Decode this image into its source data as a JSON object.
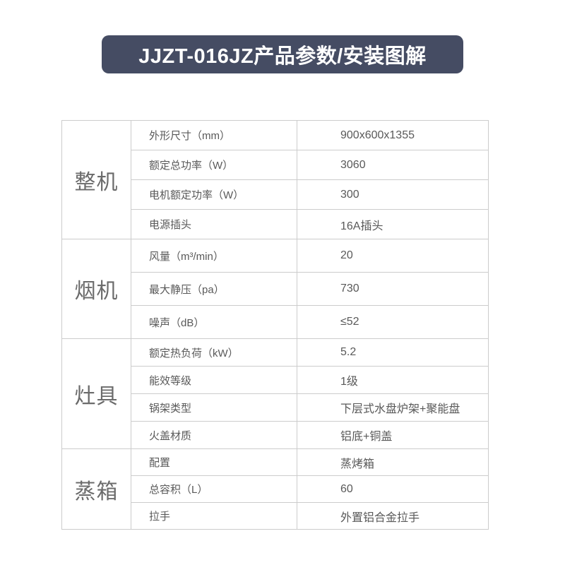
{
  "banner": {
    "title": "JJZT-016JZ产品参数/安装图解",
    "background_color": "#454c63",
    "text_color": "#ffffff"
  },
  "table": {
    "border_color": "#cccccc",
    "groups": [
      {
        "name": "整机",
        "rows": [
          {
            "label": "外形尺寸（mm）",
            "value": "900x600x1355"
          },
          {
            "label": "额定总功率（W）",
            "value": "3060"
          },
          {
            "label": "电机额定功率（W）",
            "value": "300"
          },
          {
            "label": "电源插头",
            "value": "16A插头"
          }
        ]
      },
      {
        "name": "烟机",
        "rows": [
          {
            "label": "风量（m³/min）",
            "value": "20"
          },
          {
            "label": "最大静压（pa）",
            "value": "730"
          },
          {
            "label": "噪声（dB）",
            "value": "≤52"
          }
        ]
      },
      {
        "name": "灶具",
        "rows": [
          {
            "label": "额定热负荷（kW）",
            "value": "5.2"
          },
          {
            "label": "能效等级",
            "value": "1级"
          },
          {
            "label": "锅架类型",
            "value": "下层式水盘炉架+聚能盘"
          },
          {
            "label": "火盖材质",
            "value": "铝底+铜盖"
          }
        ]
      },
      {
        "name": "蒸箱",
        "rows": [
          {
            "label": "配置",
            "value": "蒸烤箱"
          },
          {
            "label": "总容积（L）",
            "value": "60"
          },
          {
            "label": "拉手",
            "value": "外置铝合金拉手"
          }
        ]
      }
    ]
  }
}
